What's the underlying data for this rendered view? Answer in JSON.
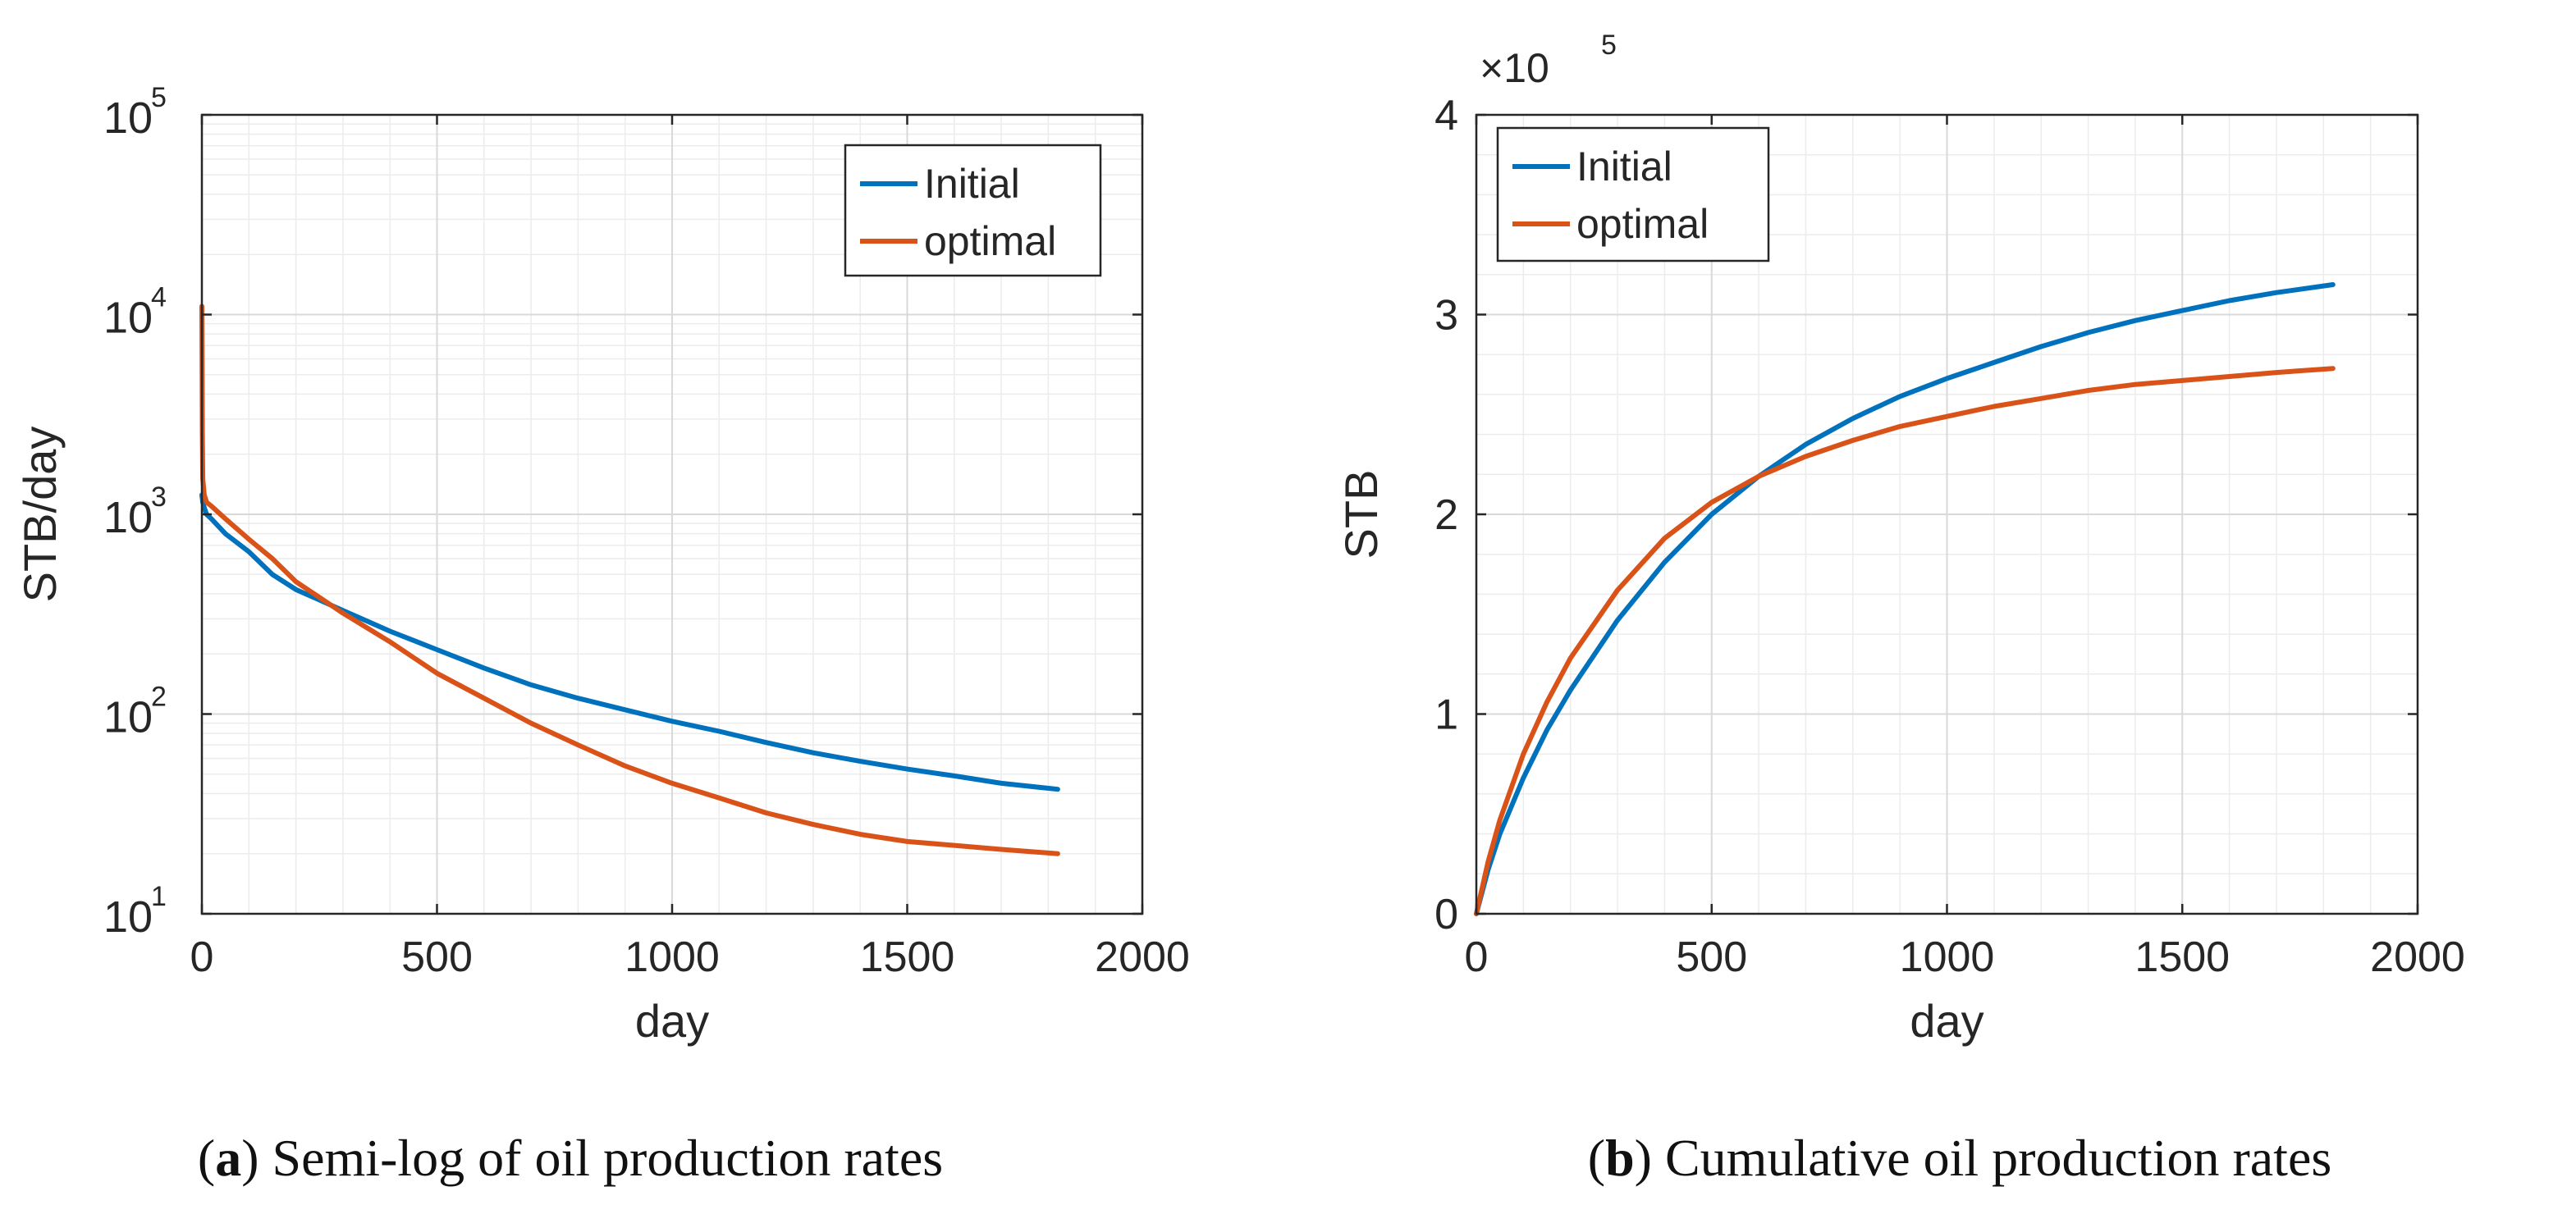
{
  "colors": {
    "initial": "#0072BD",
    "optimal": "#D95319",
    "grid_major": "#d9d9d9",
    "grid_minor": "#ececec",
    "axis": "#262626"
  },
  "chart_data": [
    {
      "type": "line",
      "scale_y": "log",
      "xlabel": "day",
      "ylabel": "STB/day",
      "xlim": [
        0,
        2000
      ],
      "ylim": [
        10,
        100000
      ],
      "xticks": [
        0,
        500,
        1000,
        1500,
        2000
      ],
      "xtick_labels": [
        "0",
        "500",
        "1000",
        "1500",
        "2000"
      ],
      "yticks": [
        10,
        100,
        1000,
        10000,
        100000
      ],
      "ytick_labels": [
        {
          "base": "10",
          "exp": "1"
        },
        {
          "base": "10",
          "exp": "2"
        },
        {
          "base": "10",
          "exp": "3"
        },
        {
          "base": "10",
          "exp": "4"
        },
        {
          "base": "10",
          "exp": "5"
        }
      ],
      "grid": true,
      "legend": "top-right",
      "series": [
        {
          "name": "Initial",
          "color": "#0072BD",
          "x": [
            0,
            2,
            5,
            10,
            20,
            50,
            100,
            150,
            200,
            300,
            400,
            500,
            600,
            700,
            800,
            900,
            1000,
            1100,
            1200,
            1300,
            1400,
            1500,
            1600,
            1700,
            1820
          ],
          "y": [
            1250,
            1150,
            1080,
            1000,
            950,
            800,
            650,
            500,
            420,
            330,
            260,
            210,
            170,
            140,
            120,
            105,
            92,
            82,
            72,
            64,
            58,
            53,
            49,
            45,
            42
          ]
        },
        {
          "name": "optimal",
          "color": "#D95319",
          "x": [
            0,
            1,
            2,
            5,
            10,
            20,
            50,
            100,
            150,
            200,
            300,
            400,
            500,
            600,
            700,
            800,
            900,
            1000,
            1100,
            1200,
            1300,
            1400,
            1500,
            1600,
            1700,
            1820
          ],
          "y": [
            11000,
            2500,
            1500,
            1250,
            1150,
            1100,
            950,
            750,
            600,
            460,
            320,
            230,
            160,
            120,
            90,
            70,
            55,
            45,
            38,
            32,
            28,
            25,
            23,
            22,
            21,
            20
          ]
        }
      ],
      "caption": {
        "label": "a",
        "text": " Semi-log of oil production rates"
      }
    },
    {
      "type": "line",
      "xlabel": "day",
      "ylabel": "STB",
      "xlim": [
        0,
        2000
      ],
      "ylim": [
        0,
        4
      ],
      "scale_factor": {
        "times": "×10",
        "exp": "5"
      },
      "xticks": [
        0,
        500,
        1000,
        1500,
        2000
      ],
      "xtick_labels": [
        "0",
        "500",
        "1000",
        "1500",
        "2000"
      ],
      "yticks": [
        0,
        1,
        2,
        3,
        4
      ],
      "ytick_labels": [
        "0",
        "1",
        "2",
        "3",
        "4"
      ],
      "grid": true,
      "legend": "top-left",
      "series": [
        {
          "name": "Initial",
          "color": "#0072BD",
          "x": [
            0,
            25,
            50,
            100,
            150,
            200,
            300,
            400,
            500,
            600,
            700,
            800,
            900,
            1000,
            1100,
            1200,
            1300,
            1400,
            1500,
            1600,
            1700,
            1820
          ],
          "y": [
            0,
            0.22,
            0.4,
            0.68,
            0.92,
            1.12,
            1.47,
            1.76,
            2.0,
            2.19,
            2.35,
            2.48,
            2.59,
            2.68,
            2.76,
            2.84,
            2.91,
            2.97,
            3.02,
            3.07,
            3.11,
            3.15
          ]
        },
        {
          "name": "optimal",
          "color": "#D95319",
          "x": [
            0,
            25,
            50,
            100,
            150,
            200,
            300,
            400,
            500,
            600,
            700,
            800,
            900,
            1000,
            1100,
            1200,
            1300,
            1400,
            1500,
            1600,
            1700,
            1820
          ],
          "y": [
            0,
            0.26,
            0.47,
            0.8,
            1.06,
            1.28,
            1.62,
            1.88,
            2.06,
            2.19,
            2.29,
            2.37,
            2.44,
            2.49,
            2.54,
            2.58,
            2.62,
            2.65,
            2.67,
            2.69,
            2.71,
            2.73
          ]
        }
      ],
      "caption": {
        "label": "b",
        "text": " Cumulative oil production rates"
      }
    }
  ]
}
